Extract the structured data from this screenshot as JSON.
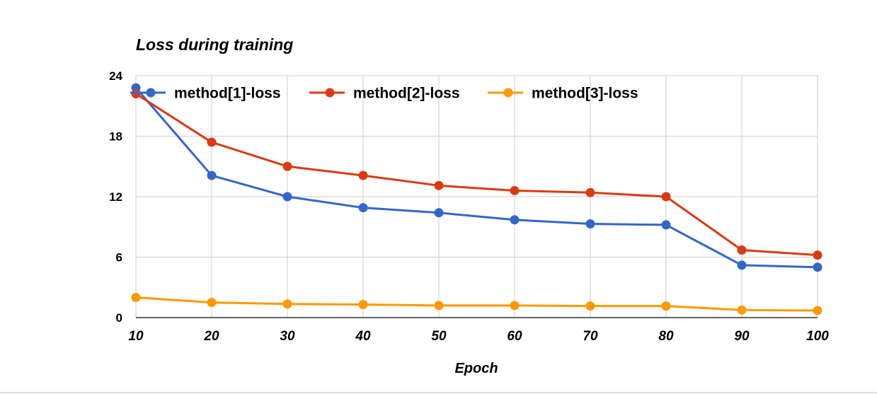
{
  "chart_data": {
    "type": "line",
    "title": "Loss during training",
    "xlabel": "Epoch",
    "ylabel": "",
    "x": [
      10,
      20,
      30,
      40,
      50,
      60,
      70,
      80,
      90,
      100
    ],
    "x_tick_labels": [
      "10",
      "20",
      "30",
      "40",
      "50",
      "60",
      "70",
      "80",
      "90",
      "100"
    ],
    "ylim": [
      0,
      24
    ],
    "y_ticks": [
      0,
      6,
      12,
      18,
      24
    ],
    "y_tick_labels": [
      "0",
      "6",
      "12",
      "18",
      "24"
    ],
    "grid": true,
    "legend_position": "top",
    "series": [
      {
        "name": "method[1]-loss",
        "color": "#3366cc",
        "values": [
          22.8,
          14.1,
          12.0,
          10.9,
          10.4,
          9.7,
          9.3,
          9.2,
          5.2,
          5.0
        ]
      },
      {
        "name": "method[2]-loss",
        "color": "#dc3912",
        "values": [
          22.2,
          17.4,
          15.0,
          14.1,
          13.1,
          12.6,
          12.4,
          12.0,
          6.7,
          6.2
        ]
      },
      {
        "name": "method[3]-loss",
        "color": "#ff9900",
        "values": [
          2.0,
          1.5,
          1.35,
          1.3,
          1.2,
          1.2,
          1.15,
          1.15,
          0.75,
          0.7
        ]
      }
    ]
  }
}
